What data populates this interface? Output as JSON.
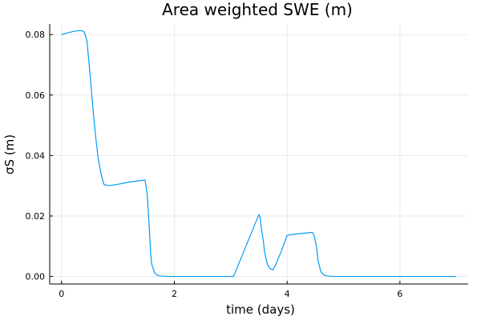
{
  "chart_data": {
    "type": "line",
    "title": "Area weighted SWE (m)",
    "xlabel": "time (days)",
    "ylabel": "σS (m)",
    "xlim": [
      -0.21,
      7.21
    ],
    "ylim": [
      -0.0025,
      0.0835
    ],
    "xticks": [
      0,
      2,
      4,
      6
    ],
    "xtick_labels": [
      "0",
      "2",
      "4",
      "6"
    ],
    "yticks": [
      0.0,
      0.02,
      0.04,
      0.06,
      0.08
    ],
    "ytick_labels": [
      "0.00",
      "0.02",
      "0.04",
      "0.06",
      "0.08"
    ],
    "grid": true,
    "legend": "none",
    "colors": {
      "series": "#009af9",
      "grid": "#e9e9e9",
      "axis": "#000000"
    },
    "series": [
      {
        "x": [
          0.0,
          0.1,
          0.2,
          0.3,
          0.35,
          0.4,
          0.45,
          0.5,
          0.55,
          0.6,
          0.65,
          0.7,
          0.75,
          0.8,
          0.85,
          0.9,
          1.0,
          1.2,
          1.4,
          1.48,
          1.52,
          1.55,
          1.58,
          1.6,
          1.65,
          1.7,
          1.75,
          1.8,
          1.9,
          2.0,
          2.5,
          3.0,
          3.05,
          3.5,
          3.52,
          3.55,
          3.58,
          3.6,
          3.65,
          3.7,
          3.75,
          3.8,
          3.9,
          4.0,
          4.1,
          4.2,
          4.3,
          4.4,
          4.45,
          4.48,
          4.52,
          4.55,
          4.6,
          4.65,
          4.7,
          4.8,
          5.0,
          6.0,
          7.0
        ],
        "y": [
          0.08,
          0.0805,
          0.081,
          0.0813,
          0.0813,
          0.081,
          0.078,
          0.068,
          0.057,
          0.047,
          0.039,
          0.034,
          0.0305,
          0.0301,
          0.0301,
          0.0302,
          0.0305,
          0.0312,
          0.0317,
          0.0319,
          0.027,
          0.018,
          0.0075,
          0.004,
          0.0012,
          0.0004,
          0.0002,
          0.0001,
          0.0,
          0.0,
          0.0,
          0.0,
          0.0,
          0.0205,
          0.0195,
          0.015,
          0.0115,
          0.008,
          0.004,
          0.0025,
          0.0022,
          0.004,
          0.0085,
          0.0136,
          0.0139,
          0.0141,
          0.0143,
          0.0145,
          0.0145,
          0.0135,
          0.0098,
          0.005,
          0.0015,
          0.0005,
          0.0002,
          0.0,
          0.0,
          0.0,
          0.0
        ]
      }
    ]
  }
}
